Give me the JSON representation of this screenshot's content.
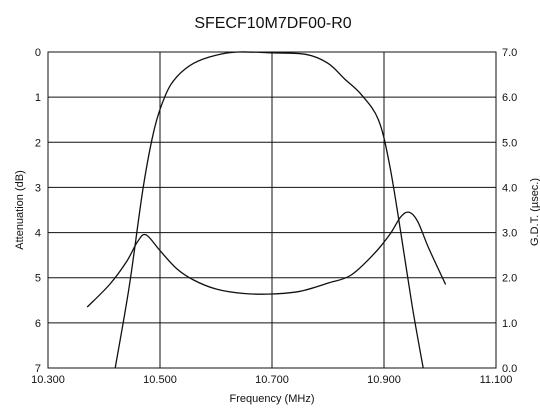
{
  "chart_data": {
    "type": "line",
    "title": "SFECF10M7DF00-R0",
    "xlabel": "Frequency (MHz)",
    "ylabel": "Attenuation (dB)",
    "y2label": "G.D.T. (µsec.)",
    "xlim": [
      10.3,
      11.1
    ],
    "ylim": [
      0,
      7
    ],
    "y_inverted": true,
    "y2lim": [
      0.0,
      7.0
    ],
    "x_ticks": [
      10.3,
      10.5,
      10.7,
      10.9,
      11.1
    ],
    "x_tick_labels": [
      "10.300",
      "10.500",
      "10.700",
      "10.900",
      "11.100"
    ],
    "y_ticks": [
      0,
      1,
      2,
      3,
      4,
      5,
      6,
      7
    ],
    "y_tick_labels": [
      "0",
      "1",
      "2",
      "3",
      "4",
      "5",
      "6",
      "7"
    ],
    "y2_ticks": [
      7.0,
      6.0,
      5.0,
      4.0,
      3.0,
      2.0,
      1.0,
      0.0
    ],
    "y2_tick_labels": [
      "7.0",
      "6.0",
      "5.0",
      "4.0",
      "3.0",
      "2.0",
      "1.0",
      "0.0"
    ],
    "grid": true,
    "series": [
      {
        "axis": "left",
        "x": [
          10.42,
          10.445,
          10.47,
          10.49,
          10.51,
          10.53,
          10.56,
          10.6,
          10.64,
          10.7,
          10.76,
          10.8,
          10.83,
          10.86,
          10.89,
          10.91,
          10.93,
          10.95,
          10.97
        ],
        "values": [
          7.0,
          5.2,
          3.0,
          1.7,
          0.95,
          0.55,
          0.25,
          0.07,
          0.0,
          0.02,
          0.05,
          0.25,
          0.6,
          0.95,
          1.5,
          2.5,
          4.0,
          5.6,
          7.0
        ]
      },
      {
        "axis": "right",
        "x": [
          10.37,
          10.41,
          10.44,
          10.46,
          10.475,
          10.5,
          10.53,
          10.56,
          10.6,
          10.65,
          10.7,
          10.75,
          10.8,
          10.84,
          10.88,
          10.91,
          10.93,
          10.945,
          10.96,
          10.98,
          11.01
        ],
        "values": [
          1.35,
          1.85,
          2.35,
          2.8,
          2.95,
          2.6,
          2.2,
          1.95,
          1.75,
          1.65,
          1.64,
          1.7,
          1.88,
          2.05,
          2.5,
          2.95,
          3.35,
          3.45,
          3.25,
          2.65,
          1.85
        ]
      }
    ]
  }
}
